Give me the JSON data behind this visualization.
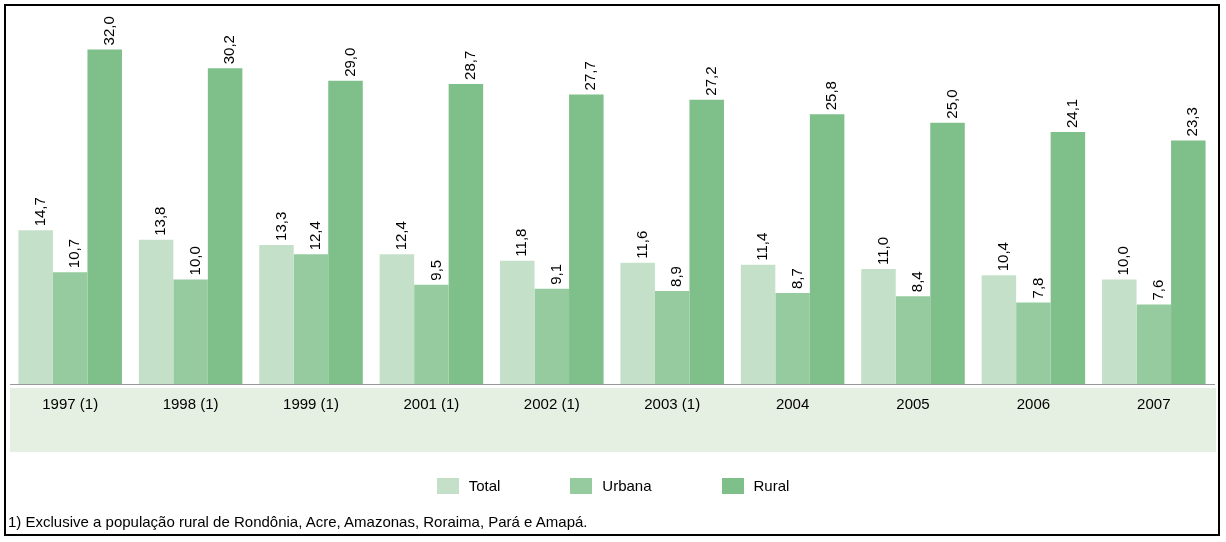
{
  "chart_data": {
    "type": "bar",
    "categories": [
      "1997 (1)",
      "1998 (1)",
      "1999 (1)",
      "2001 (1)",
      "2002 (1)",
      "2003 (1)",
      "2004",
      "2005",
      "2006",
      "2007"
    ],
    "series": [
      {
        "name": "Total",
        "color": "#c5e0c8",
        "values": [
          14.7,
          13.8,
          13.3,
          12.4,
          11.8,
          11.6,
          11.4,
          11.0,
          10.4,
          10.0
        ],
        "value_labels": [
          "14,7",
          "13,8",
          "13,3",
          "12,4",
          "11,8",
          "11,6",
          "11,4",
          "11,0",
          "10,4",
          "10,0"
        ]
      },
      {
        "name": "Urbana",
        "color": "#95cb9e",
        "values": [
          10.7,
          10.0,
          12.4,
          9.5,
          9.1,
          8.9,
          8.7,
          8.4,
          7.8,
          7.6
        ],
        "value_labels": [
          "10,7",
          "10,0",
          "12,4",
          "9,5",
          "9,1",
          "8,9",
          "8,7",
          "8,4",
          "7,8",
          "7,6"
        ]
      },
      {
        "name": "Rural",
        "color": "#7fbf89",
        "values": [
          32.0,
          30.2,
          29.0,
          28.7,
          27.7,
          27.2,
          25.8,
          25.0,
          24.1,
          23.3
        ],
        "value_labels": [
          "32,0",
          "30,2",
          "29,0",
          "28,7",
          "27,7",
          "27,2",
          "25,8",
          "25,0",
          "24,1",
          "23,3"
        ]
      }
    ],
    "tick_labels": "x",
    "legend": "bottom",
    "annotations": [
      "1) Exclusive a população rural de Rondônia, Acre, Amazonas, Roraima, Pará e Amapá."
    ]
  }
}
